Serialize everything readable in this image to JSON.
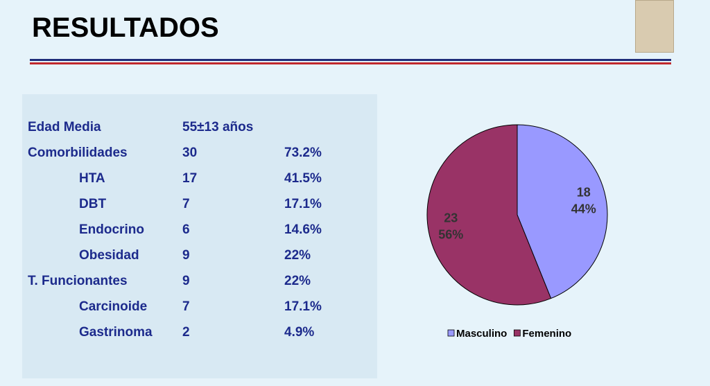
{
  "header": {
    "title": "RESULTADOS"
  },
  "table": {
    "rows": [
      [
        "Edad Media",
        "55±13 años"
      ],
      [
        "Comorbilidades",
        "30",
        "73.2%"
      ],
      [
        "HTA",
        "17",
        "41.5%"
      ],
      [
        "DBT",
        "7",
        "17.1%"
      ],
      [
        "Endocrino",
        "6",
        "14.6%"
      ],
      [
        "Obesidad",
        "9",
        "22%"
      ],
      [
        "T. Funcionantes",
        "9",
        "22%"
      ],
      [
        "Carcinoide",
        "7",
        "17.1%"
      ],
      [
        "Gastrinoma",
        "2",
        "4.9%"
      ]
    ]
  },
  "chart_data": {
    "type": "pie",
    "categories": [
      "Masculino",
      "Femenino"
    ],
    "values": [
      18,
      23
    ],
    "percent_labels": [
      "44%",
      "56%"
    ],
    "colors": [
      "#9999ff",
      "#993366"
    ]
  }
}
